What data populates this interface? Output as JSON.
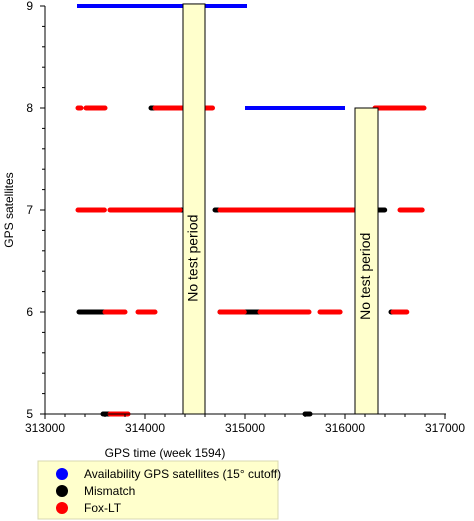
{
  "chart_data": {
    "type": "scatter",
    "title": "",
    "xlabel": "GPS time (week 1594)",
    "ylabel": "GPS satellites",
    "xlim": [
      313000,
      317000
    ],
    "ylim": [
      5,
      9
    ],
    "x_ticks": [
      "313000",
      "314000",
      "315000",
      "316000",
      "317000"
    ],
    "y_ticks": [
      "5",
      "6",
      "7",
      "8",
      "9"
    ],
    "grid": false,
    "legend_position": "bottom-left",
    "colors": {
      "availability": "#0000ff",
      "mismatch": "#000000",
      "foxlt": "#ff0000",
      "band_fill": "#ffffcc",
      "legend_bg": "#ffffcc"
    },
    "series": [
      {
        "name": "Availability GPS satellites (15° cutoff)",
        "color": "#0000ff",
        "segments": [
          {
            "y": 9,
            "x_start": 313320,
            "x_end": 315020
          },
          {
            "y": 8,
            "x_start": 315000,
            "x_end": 316000
          }
        ]
      },
      {
        "name": "Mismatch",
        "color": "#000000",
        "segments": [
          {
            "y": 8,
            "x_start": 314060,
            "x_end": 314110
          },
          {
            "y": 7,
            "x_start": 314350,
            "x_end": 314390
          },
          {
            "y": 7,
            "x_start": 314700,
            "x_end": 314730
          },
          {
            "y": 7,
            "x_start": 316160,
            "x_end": 316210
          },
          {
            "y": 7,
            "x_start": 316280,
            "x_end": 316400
          },
          {
            "y": 6,
            "x_start": 313340,
            "x_end": 313700
          },
          {
            "y": 6,
            "x_start": 314750,
            "x_end": 314810
          },
          {
            "y": 6,
            "x_start": 314940,
            "x_end": 315150
          },
          {
            "y": 6,
            "x_start": 316460,
            "x_end": 316520
          },
          {
            "y": 5,
            "x_start": 313580,
            "x_end": 313760
          },
          {
            "y": 5,
            "x_start": 315600,
            "x_end": 315650
          }
        ]
      },
      {
        "name": "Fox-LT",
        "color": "#ff0000",
        "segments": [
          {
            "y": 8,
            "x_start": 313330,
            "x_end": 313360
          },
          {
            "y": 8,
            "x_start": 313410,
            "x_end": 313600
          },
          {
            "y": 8,
            "x_start": 314100,
            "x_end": 314380
          },
          {
            "y": 8,
            "x_start": 314600,
            "x_end": 314680
          },
          {
            "y": 8,
            "x_start": 316300,
            "x_end": 316790
          },
          {
            "y": 7,
            "x_start": 313330,
            "x_end": 313600
          },
          {
            "y": 7,
            "x_start": 313650,
            "x_end": 314350
          },
          {
            "y": 7,
            "x_start": 314750,
            "x_end": 316100
          },
          {
            "y": 7,
            "x_start": 316550,
            "x_end": 316780
          },
          {
            "y": 6,
            "x_start": 313600,
            "x_end": 313800
          },
          {
            "y": 6,
            "x_start": 313930,
            "x_end": 314100
          },
          {
            "y": 6,
            "x_start": 314750,
            "x_end": 315000
          },
          {
            "y": 6,
            "x_start": 315150,
            "x_end": 315640
          },
          {
            "y": 6,
            "x_start": 315750,
            "x_end": 315960
          },
          {
            "y": 6,
            "x_start": 316480,
            "x_end": 316620
          },
          {
            "y": 5,
            "x_start": 313650,
            "x_end": 313830
          }
        ]
      }
    ],
    "bands": [
      {
        "label": "No test period",
        "x_start": 314380,
        "x_end": 314600,
        "y_top": 9.02
      },
      {
        "label": "No test period",
        "x_start": 316100,
        "x_end": 316330,
        "y_top": 8.0
      }
    ]
  }
}
